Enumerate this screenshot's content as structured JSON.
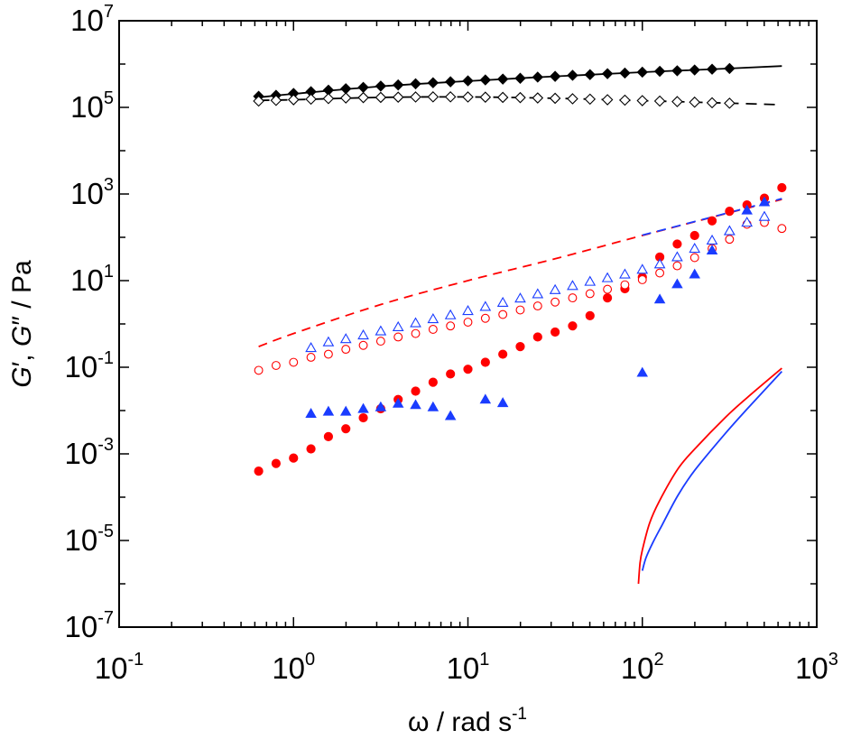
{
  "chart_data": {
    "type": "scatter",
    "title": "",
    "x_scale": "log",
    "y_scale": "log",
    "xlim": [
      0.1,
      1000
    ],
    "ylim": [
      1e-07,
      10000000.0
    ],
    "x_ticks": [
      {
        "base": "10",
        "exp": "-1",
        "value": 0.1
      },
      {
        "base": "10",
        "exp": "0",
        "value": 1
      },
      {
        "base": "10",
        "exp": "1",
        "value": 10
      },
      {
        "base": "10",
        "exp": "2",
        "value": 100
      },
      {
        "base": "10",
        "exp": "3",
        "value": 1000
      }
    ],
    "y_ticks": [
      {
        "base": "10",
        "exp": "-7",
        "value": 1e-07
      },
      {
        "base": "10",
        "exp": "-5",
        "value": 1e-05
      },
      {
        "base": "10",
        "exp": "-3",
        "value": 0.001
      },
      {
        "base": "10",
        "exp": "-1",
        "value": 0.1
      },
      {
        "base": "10",
        "exp": "1",
        "value": 10
      },
      {
        "base": "10",
        "exp": "3",
        "value": 1000
      },
      {
        "base": "10",
        "exp": "5",
        "value": 100000
      },
      {
        "base": "10",
        "exp": "7",
        "value": 10000000
      }
    ],
    "xlabel": {
      "symbol": "ω",
      "main": " / rad s",
      "sup": "-1"
    },
    "ylabel": {
      "g1": "G",
      "s1": "′",
      "mid": ", ",
      "g2": "G",
      "s2": "″",
      "unit": " / Pa"
    },
    "series": [
      {
        "name": "G' (black, filled diamond)",
        "marker": "diamond",
        "filled": true,
        "color": "#000000",
        "x": [
          0.631,
          0.794,
          1.0,
          1.259,
          1.585,
          1.995,
          2.512,
          3.162,
          3.981,
          5.012,
          6.31,
          7.943,
          10.0,
          12.59,
          15.85,
          19.95,
          25.12,
          31.62,
          39.81,
          50.12,
          63.1,
          79.43,
          100.0,
          125.9,
          158.5,
          199.5,
          251.2,
          316.2
        ],
        "y": [
          180000,
          190000,
          210000,
          230000,
          250000,
          270000,
          290000,
          310000,
          330000,
          350000,
          370000,
          390000,
          410000,
          430000,
          450000,
          470000,
          500000,
          520000,
          550000,
          570000,
          600000,
          620000,
          650000,
          680000,
          700000,
          730000,
          760000,
          790000
        ]
      },
      {
        "name": "G'' (black, open diamond)",
        "marker": "diamond",
        "filled": false,
        "color": "#000000",
        "x": [
          0.631,
          0.794,
          1.0,
          1.259,
          1.585,
          1.995,
          2.512,
          3.162,
          3.981,
          5.012,
          6.31,
          7.943,
          10.0,
          12.59,
          15.85,
          19.95,
          25.12,
          31.62,
          39.81,
          50.12,
          63.1,
          79.43,
          100.0,
          125.9,
          158.5,
          199.5,
          251.2,
          316.2
        ],
        "y": [
          140000,
          145000,
          150000,
          155000,
          160000,
          165000,
          168000,
          170000,
          172000,
          174000,
          175000,
          175000,
          174000,
          172000,
          170000,
          168000,
          165000,
          162000,
          158000,
          155000,
          150000,
          147000,
          143000,
          140000,
          136000,
          132000,
          128000,
          125000
        ]
      },
      {
        "name": "G' (red, filled circle)",
        "marker": "circle",
        "filled": true,
        "color": "#ff0000",
        "x": [
          0.631,
          0.794,
          1.0,
          1.259,
          1.585,
          1.995,
          2.512,
          3.162,
          3.981,
          5.012,
          6.31,
          7.943,
          10.0,
          12.59,
          15.85,
          19.95,
          25.12,
          31.62,
          39.81,
          50.12,
          63.1,
          79.43,
          100.0,
          125.9,
          158.5,
          199.5,
          251.2,
          316.2,
          398.1,
          501.2,
          631.0
        ],
        "y": [
          0.0004,
          0.0006,
          0.0008,
          0.0013,
          0.0025,
          0.0038,
          0.0068,
          0.011,
          0.018,
          0.028,
          0.045,
          0.07,
          0.09,
          0.13,
          0.2,
          0.3,
          0.5,
          0.65,
          0.9,
          1.55,
          4.0,
          6.5,
          12,
          35,
          70,
          110,
          240,
          400,
          560,
          800,
          1400
        ]
      },
      {
        "name": "G'' (red, open circle)",
        "marker": "circle",
        "filled": false,
        "color": "#ff0000",
        "x": [
          0.631,
          0.794,
          1.0,
          1.259,
          1.585,
          1.995,
          2.512,
          3.162,
          3.981,
          5.012,
          6.31,
          7.943,
          10.0,
          12.59,
          15.85,
          19.95,
          25.12,
          31.62,
          39.81,
          50.12,
          63.1,
          79.43,
          100.0,
          125.9,
          158.5,
          199.5,
          251.2,
          316.2,
          398.1,
          501.2,
          631.0
        ],
        "y": [
          0.085,
          0.11,
          0.13,
          0.17,
          0.2,
          0.26,
          0.32,
          0.4,
          0.5,
          0.6,
          0.75,
          0.9,
          1.1,
          1.35,
          1.65,
          2.1,
          2.6,
          3.2,
          4.0,
          5.0,
          6.3,
          8.0,
          10.5,
          15,
          22,
          34,
          55,
          90,
          200,
          220,
          160
        ]
      },
      {
        "name": "G' (blue, filled triangle)",
        "marker": "triangle",
        "filled": true,
        "color": "#1a3cff",
        "x": [
          1.259,
          1.585,
          1.995,
          2.512,
          3.162,
          3.981,
          5.012,
          6.31,
          7.943,
          12.59,
          15.85,
          100.0,
          125.9,
          158.5,
          199.5,
          251.2,
          316.2,
          398.1,
          501.2
        ],
        "y": [
          0.0085,
          0.0095,
          0.0095,
          0.011,
          0.012,
          0.0145,
          0.0135,
          0.012,
          0.0075,
          0.018,
          0.015,
          0.075,
          3.7,
          8.3,
          14,
          50,
          140,
          420,
          650
        ]
      },
      {
        "name": "G'' (blue, open triangle)",
        "marker": "triangle",
        "filled": false,
        "color": "#1a3cff",
        "x": [
          1.259,
          1.585,
          1.995,
          2.512,
          3.162,
          3.981,
          5.012,
          6.31,
          7.943,
          10.0,
          12.59,
          15.85,
          19.95,
          25.12,
          31.62,
          39.81,
          50.12,
          63.1,
          79.43,
          100.0,
          125.9,
          158.5,
          199.5,
          251.2,
          316.2,
          398.1,
          501.2
        ],
        "y": [
          0.28,
          0.38,
          0.45,
          0.55,
          0.68,
          0.85,
          1.05,
          1.3,
          1.6,
          2.0,
          2.5,
          3.1,
          3.9,
          4.9,
          6.1,
          7.6,
          9.5,
          11.5,
          14,
          18,
          24,
          35,
          55,
          85,
          140,
          220,
          300
        ]
      }
    ],
    "lines": [
      {
        "name": "black solid fit",
        "color": "#000000",
        "dash": "none",
        "x": [
          0.631,
          1,
          3.162,
          10,
          31.62,
          100,
          316.2,
          631
        ],
        "y": [
          170000,
          205000,
          305000,
          405000,
          520000,
          650000,
          790000,
          900000
        ]
      },
      {
        "name": "black dashed fit",
        "color": "#000000",
        "dash": "12,8",
        "x": [
          0.631,
          1,
          3.162,
          10,
          31.62,
          100,
          316.2,
          631
        ],
        "y": [
          145000,
          150000,
          170000,
          174000,
          162000,
          143000,
          125000,
          115000
        ]
      },
      {
        "name": "red dashed fit",
        "color": "#ff0000",
        "dash": "10,7",
        "x": [
          0.631,
          1,
          3.162,
          10,
          31.62,
          100,
          316.2,
          631
        ],
        "y": [
          0.3,
          0.6,
          2.8,
          10,
          32,
          110,
          370,
          750
        ]
      },
      {
        "name": "blue dashed fit",
        "color": "#1a3cff",
        "dash": "10,7",
        "x": [
          100,
          316.2,
          631
        ],
        "y": [
          112,
          375,
          780
        ]
      },
      {
        "name": "red solid curve",
        "color": "#ff0000",
        "dash": "none",
        "x": [
          95,
          97,
          100,
          110,
          125,
          160,
          200,
          300,
          400,
          631
        ],
        "y": [
          1e-06,
          3e-06,
          6e-06,
          2.5e-05,
          8e-05,
          0.00045,
          0.0013,
          0.007,
          0.02,
          0.095
        ]
      },
      {
        "name": "blue solid curve",
        "color": "#1a3cff",
        "dash": "none",
        "x": [
          100,
          105,
          115,
          130,
          160,
          200,
          300,
          400,
          631
        ],
        "y": [
          2e-06,
          4e-06,
          9e-06,
          2.3e-05,
          0.00011,
          0.00042,
          0.003,
          0.011,
          0.08
        ]
      }
    ]
  }
}
